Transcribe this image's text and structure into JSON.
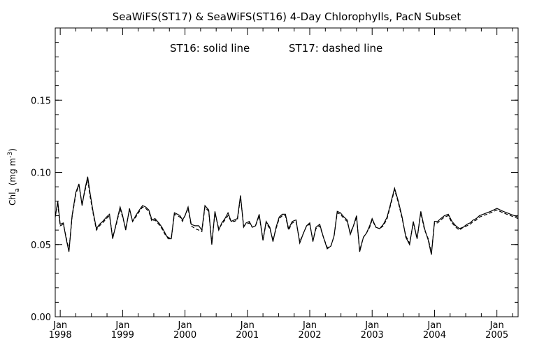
{
  "chart_data": {
    "type": "line",
    "title": "SeaWiFS(ST17) & SeaWiFS(ST16) 4-Day Chlorophylls, PacN Subset",
    "annotation": {
      "part1": "ST16: solid line",
      "part2": "ST17: dashed line"
    },
    "ylabel": {
      "base": "Chl",
      "sub": "a",
      "mid": " (mg m",
      "sup": "-3",
      "end": ")"
    },
    "xlim": [
      1997.92,
      2005.34
    ],
    "ylim": [
      0,
      0.2
    ],
    "yticks": [
      {
        "value": 0.0,
        "label": "0.00"
      },
      {
        "value": 0.05,
        "label": "0.05"
      },
      {
        "value": 0.1,
        "label": "0.10"
      },
      {
        "value": 0.15,
        "label": "0.15"
      }
    ],
    "xticks": [
      {
        "value": 1998.0,
        "month": "Jan",
        "year": "1998"
      },
      {
        "value": 1999.0,
        "month": "Jan",
        "year": "1999"
      },
      {
        "value": 2000.0,
        "month": "Jan",
        "year": "2000"
      },
      {
        "value": 2001.0,
        "month": "Jan",
        "year": "2001"
      },
      {
        "value": 2002.0,
        "month": "Jan",
        "year": "2002"
      },
      {
        "value": 2003.0,
        "month": "Jan",
        "year": "2003"
      },
      {
        "value": 2004.0,
        "month": "Jan",
        "year": "2004"
      },
      {
        "value": 2005.0,
        "month": "Jan",
        "year": "2005"
      }
    ],
    "series": [
      {
        "name": "ST16",
        "style": "solid",
        "color": "#000000",
        "x": [
          1997.92,
          1997.96,
          1998.0,
          1998.05,
          1998.09,
          1998.14,
          1998.19,
          1998.25,
          1998.3,
          1998.35,
          1998.39,
          1998.44,
          1998.48,
          1998.53,
          1998.58,
          1998.63,
          1998.68,
          1998.74,
          1998.79,
          1998.84,
          1998.9,
          1998.96,
          1999.0,
          1999.05,
          1999.11,
          1999.16,
          1999.21,
          1999.27,
          1999.32,
          1999.37,
          1999.42,
          1999.47,
          1999.52,
          1999.58,
          1999.63,
          1999.68,
          1999.73,
          1999.78,
          1999.83,
          1999.88,
          1999.92,
          1999.96,
          2000.0,
          2000.05,
          2000.1,
          2000.16,
          2000.22,
          2000.27,
          2000.32,
          2000.38,
          2000.43,
          2000.48,
          2000.54,
          2000.59,
          2000.64,
          2000.69,
          2000.74,
          2000.79,
          2000.84,
          2000.89,
          2000.94,
          2000.98,
          2001.03,
          2001.08,
          2001.13,
          2001.19,
          2001.25,
          2001.3,
          2001.36,
          2001.41,
          2001.46,
          2001.51,
          2001.56,
          2001.61,
          2001.66,
          2001.72,
          2001.78,
          2001.84,
          2001.9,
          2001.95,
          2002.0,
          2002.05,
          2002.1,
          2002.16,
          2002.22,
          2002.28,
          2002.34,
          2002.39,
          2002.44,
          2002.49,
          2002.55,
          2002.6,
          2002.65,
          2002.7,
          2002.75,
          2002.8,
          2002.86,
          2002.91,
          2002.96,
          2003.0,
          2003.06,
          2003.12,
          2003.18,
          2003.24,
          2003.3,
          2003.36,
          2003.42,
          2003.48,
          2003.54,
          2003.6,
          2003.66,
          2003.72,
          2003.78,
          2003.84,
          2003.9,
          2003.95,
          2004.0,
          2004.05,
          2004.1,
          2004.16,
          2004.22,
          2004.28,
          2004.34,
          2004.4,
          2004.46,
          2004.52,
          2004.57,
          2004.62,
          2004.67,
          2004.72,
          2004.78,
          2004.84,
          2004.9,
          2004.95,
          2005.0,
          2005.05,
          2005.1,
          2005.16,
          2005.22,
          2005.28,
          2005.34
        ],
        "values": [
          0.069,
          0.08,
          0.064,
          0.065,
          0.055,
          0.045,
          0.07,
          0.086,
          0.092,
          0.077,
          0.087,
          0.097,
          0.085,
          0.072,
          0.061,
          0.064,
          0.066,
          0.069,
          0.071,
          0.054,
          0.065,
          0.076,
          0.07,
          0.06,
          0.075,
          0.066,
          0.07,
          0.074,
          0.077,
          0.076,
          0.074,
          0.067,
          0.068,
          0.065,
          0.062,
          0.058,
          0.054,
          0.054,
          0.072,
          0.071,
          0.07,
          0.067,
          0.07,
          0.076,
          0.064,
          0.063,
          0.063,
          0.06,
          0.077,
          0.074,
          0.05,
          0.073,
          0.06,
          0.065,
          0.068,
          0.072,
          0.066,
          0.067,
          0.068,
          0.084,
          0.062,
          0.065,
          0.066,
          0.062,
          0.063,
          0.071,
          0.053,
          0.066,
          0.062,
          0.052,
          0.062,
          0.069,
          0.071,
          0.071,
          0.061,
          0.066,
          0.067,
          0.051,
          0.058,
          0.063,
          0.065,
          0.052,
          0.062,
          0.064,
          0.055,
          0.047,
          0.049,
          0.056,
          0.073,
          0.072,
          0.069,
          0.067,
          0.057,
          0.063,
          0.07,
          0.045,
          0.055,
          0.058,
          0.063,
          0.068,
          0.062,
          0.061,
          0.064,
          0.069,
          0.079,
          0.089,
          0.08,
          0.069,
          0.055,
          0.05,
          0.066,
          0.054,
          0.073,
          0.061,
          0.053,
          0.043,
          0.066,
          0.066,
          0.068,
          0.07,
          0.071,
          0.066,
          0.063,
          0.061,
          0.062,
          0.064,
          0.065,
          0.067,
          0.068,
          0.07,
          0.071,
          0.072,
          0.073,
          0.074,
          0.075,
          0.074,
          0.073,
          0.072,
          0.071,
          0.07,
          0.069
        ]
      },
      {
        "name": "ST17",
        "style": "dashed",
        "color": "#000000",
        "x": [
          1997.92,
          1997.96,
          1998.0,
          1998.05,
          1998.09,
          1998.14,
          1998.19,
          1998.25,
          1998.3,
          1998.35,
          1998.39,
          1998.44,
          1998.48,
          1998.53,
          1998.58,
          1998.63,
          1998.68,
          1998.74,
          1998.79,
          1998.84,
          1998.9,
          1998.96,
          1999.0,
          1999.05,
          1999.11,
          1999.16,
          1999.21,
          1999.27,
          1999.32,
          1999.37,
          1999.42,
          1999.47,
          1999.52,
          1999.58,
          1999.63,
          1999.68,
          1999.73,
          1999.78,
          1999.83,
          1999.88,
          1999.92,
          1999.96,
          2000.0,
          2000.05,
          2000.1,
          2000.16,
          2000.22,
          2000.27,
          2000.32,
          2000.38,
          2000.43,
          2000.48,
          2000.54,
          2000.59,
          2000.64,
          2000.69,
          2000.74,
          2000.79,
          2000.84,
          2000.89,
          2000.94,
          2000.98,
          2001.03,
          2001.08,
          2001.13,
          2001.19,
          2001.25,
          2001.3,
          2001.36,
          2001.41,
          2001.46,
          2001.51,
          2001.56,
          2001.61,
          2001.66,
          2001.72,
          2001.78,
          2001.84,
          2001.9,
          2001.95,
          2002.0,
          2002.05,
          2002.1,
          2002.16,
          2002.22,
          2002.28,
          2002.34,
          2002.39,
          2002.44,
          2002.49,
          2002.55,
          2002.6,
          2002.65,
          2002.7,
          2002.75,
          2002.8,
          2002.86,
          2002.91,
          2002.96,
          2003.0,
          2003.06,
          2003.12,
          2003.18,
          2003.24,
          2003.3,
          2003.36,
          2003.42,
          2003.48,
          2003.54,
          2003.6,
          2003.66,
          2003.72,
          2003.78,
          2003.84,
          2003.9,
          2003.95,
          2004.0,
          2004.05,
          2004.1,
          2004.16,
          2004.22,
          2004.28,
          2004.34,
          2004.4,
          2004.46,
          2004.52,
          2004.57,
          2004.62,
          2004.67,
          2004.72,
          2004.78,
          2004.84,
          2004.9,
          2004.95,
          2005.0,
          2005.05,
          2005.1,
          2005.16,
          2005.22,
          2005.28,
          2005.34
        ],
        "values": [
          0.07,
          0.078,
          0.063,
          0.064,
          0.056,
          0.046,
          0.069,
          0.085,
          0.091,
          0.078,
          0.086,
          0.095,
          0.083,
          0.071,
          0.06,
          0.063,
          0.065,
          0.068,
          0.07,
          0.055,
          0.064,
          0.075,
          0.069,
          0.061,
          0.074,
          0.066,
          0.069,
          0.073,
          0.076,
          0.075,
          0.073,
          0.066,
          0.067,
          0.064,
          0.061,
          0.057,
          0.055,
          0.054,
          0.071,
          0.07,
          0.069,
          0.066,
          0.07,
          0.075,
          0.063,
          0.061,
          0.06,
          0.059,
          0.076,
          0.073,
          0.051,
          0.072,
          0.061,
          0.064,
          0.067,
          0.07,
          0.066,
          0.066,
          0.067,
          0.083,
          0.063,
          0.064,
          0.065,
          0.062,
          0.063,
          0.07,
          0.053,
          0.065,
          0.061,
          0.053,
          0.061,
          0.068,
          0.07,
          0.07,
          0.06,
          0.065,
          0.066,
          0.052,
          0.058,
          0.063,
          0.064,
          0.053,
          0.061,
          0.063,
          0.055,
          0.048,
          0.049,
          0.056,
          0.072,
          0.071,
          0.068,
          0.066,
          0.058,
          0.063,
          0.069,
          0.046,
          0.055,
          0.058,
          0.062,
          0.067,
          0.062,
          0.061,
          0.063,
          0.068,
          0.078,
          0.088,
          0.079,
          0.068,
          0.056,
          0.051,
          0.065,
          0.054,
          0.072,
          0.06,
          0.054,
          0.044,
          0.065,
          0.065,
          0.067,
          0.069,
          0.07,
          0.065,
          0.062,
          0.06,
          0.062,
          0.063,
          0.064,
          0.066,
          0.067,
          0.069,
          0.07,
          0.071,
          0.072,
          0.073,
          0.074,
          0.073,
          0.072,
          0.071,
          0.07,
          0.069,
          0.068
        ]
      }
    ]
  }
}
